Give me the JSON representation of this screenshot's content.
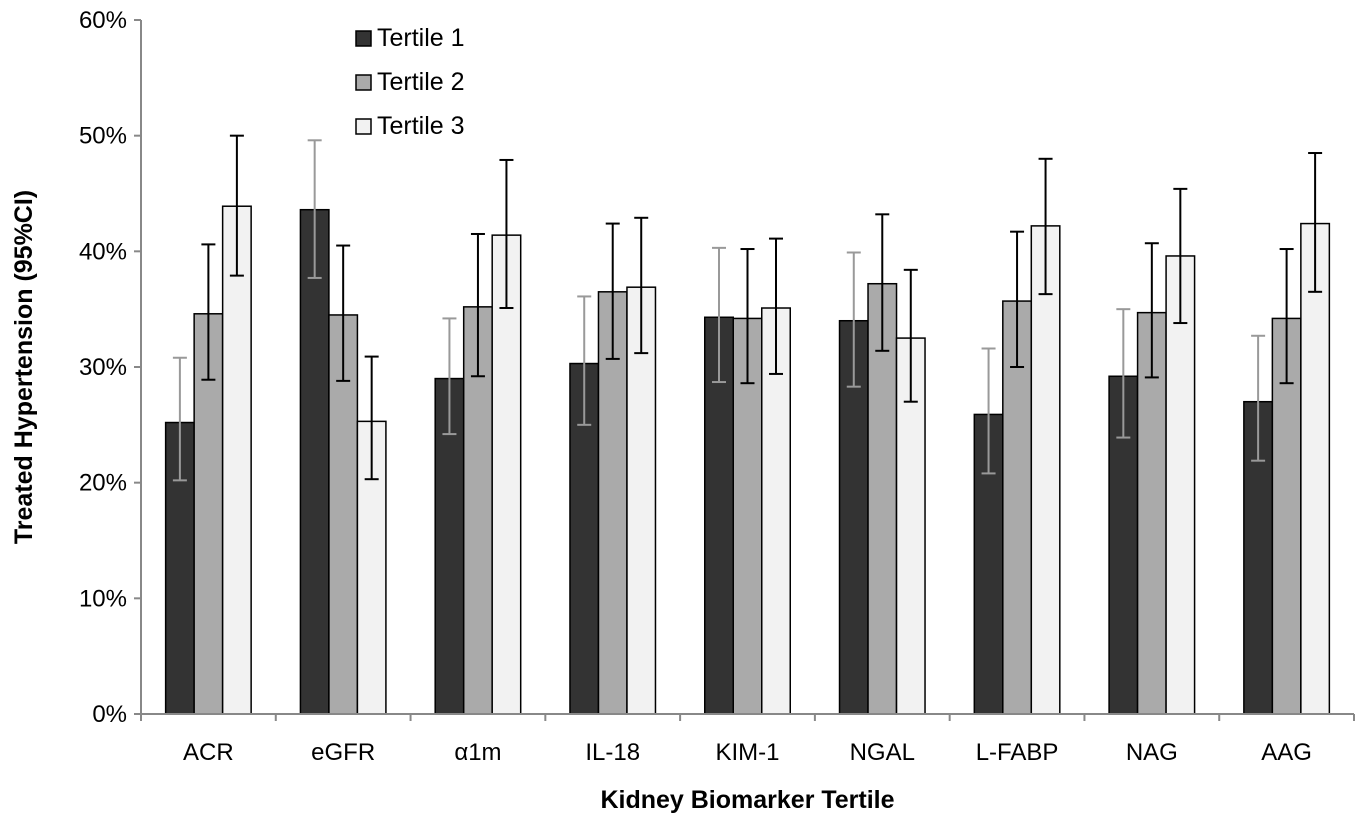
{
  "chart_data": {
    "type": "bar",
    "title": "",
    "xlabel": "Kidney Biomarker Tertile",
    "ylabel": "Treated Hypertension (95%CI)",
    "ylim": [
      0,
      60
    ],
    "yticks": [
      0,
      10,
      20,
      30,
      40,
      50,
      60
    ],
    "ytick_labels": [
      "0%",
      "10%",
      "20%",
      "30%",
      "40%",
      "50%",
      "60%"
    ],
    "y_unit": "%",
    "grid": false,
    "legend_position": "top-left",
    "categories": [
      "ACR",
      "eGFR",
      "α1m",
      "IL-18",
      "KIM-1",
      "NGAL",
      "L-FABP",
      "NAG",
      "AAG"
    ],
    "series": [
      {
        "name": "Tertile 1",
        "color": "#333333",
        "values": [
          25.2,
          43.6,
          29.0,
          30.3,
          34.3,
          34.0,
          25.9,
          29.2,
          27.0
        ],
        "ci_low": [
          20.2,
          37.7,
          24.2,
          25.0,
          28.7,
          28.3,
          20.8,
          23.9,
          21.9
        ],
        "ci_high": [
          30.8,
          49.6,
          34.2,
          36.1,
          40.3,
          39.9,
          31.6,
          35.0,
          32.7
        ],
        "error_color": "#999999"
      },
      {
        "name": "Tertile 2",
        "color": "#aaaaaa",
        "values": [
          34.6,
          34.5,
          35.2,
          36.5,
          34.2,
          37.2,
          35.7,
          34.7,
          34.2
        ],
        "ci_low": [
          28.9,
          28.8,
          29.2,
          30.7,
          28.6,
          31.4,
          30.0,
          29.1,
          28.6
        ],
        "ci_high": [
          40.6,
          40.5,
          41.5,
          42.4,
          40.2,
          43.2,
          41.7,
          40.7,
          40.2
        ],
        "error_color": "#000000"
      },
      {
        "name": "Tertile 3",
        "color": "#f2f2f2",
        "values": [
          43.9,
          25.3,
          41.4,
          36.9,
          35.1,
          32.5,
          42.2,
          39.6,
          42.4
        ],
        "ci_low": [
          37.9,
          20.3,
          35.1,
          31.2,
          29.4,
          27.0,
          36.3,
          33.8,
          36.5
        ],
        "ci_high": [
          50.0,
          30.9,
          47.9,
          42.9,
          41.1,
          38.4,
          48.0,
          45.4,
          48.5
        ],
        "error_color": "#000000"
      }
    ]
  }
}
